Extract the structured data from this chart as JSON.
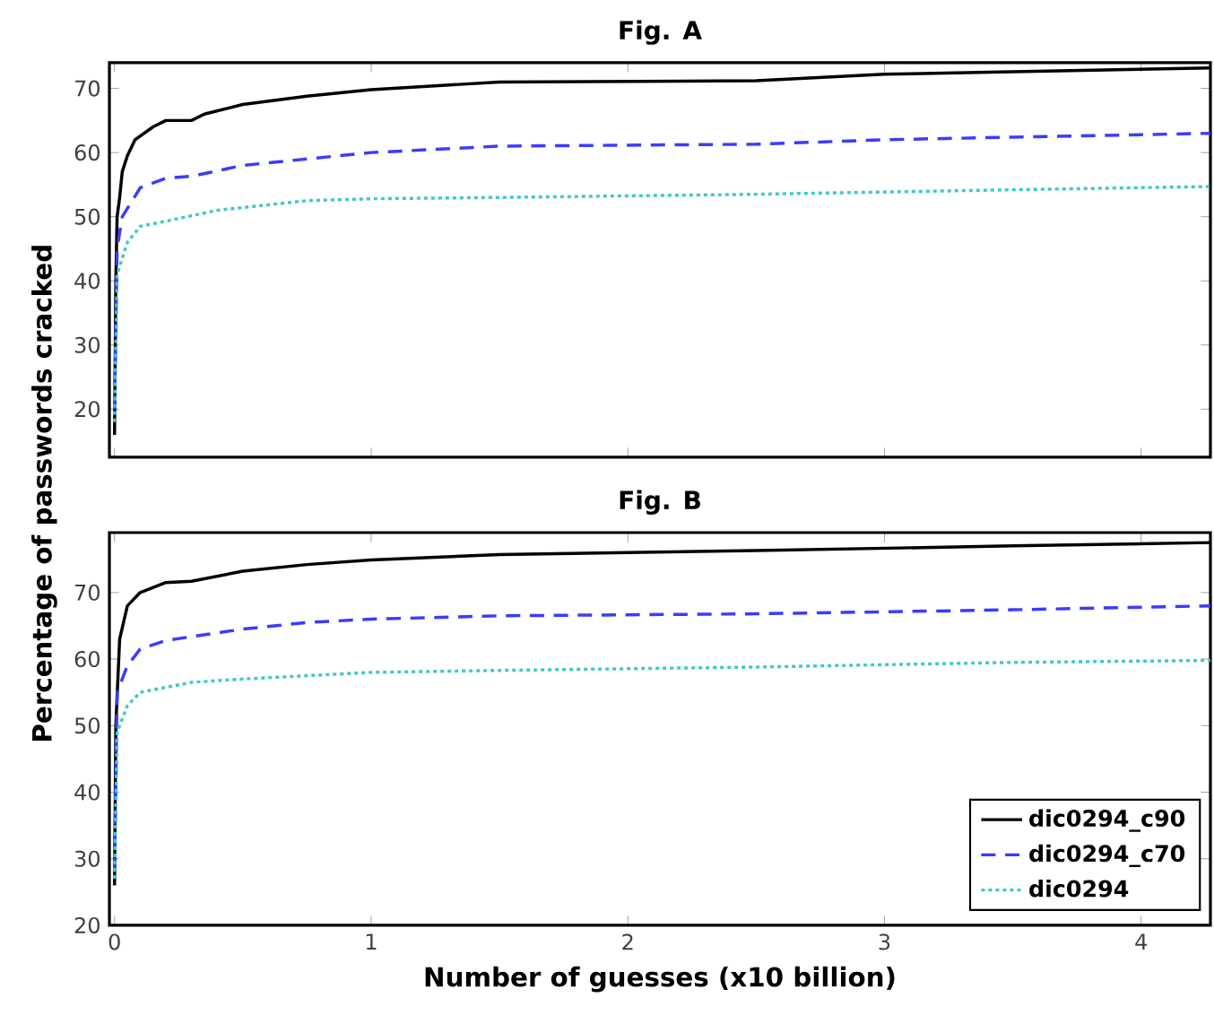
{
  "chart_data": [
    {
      "type": "line",
      "title": "Fig. A",
      "xlim": [
        -0.02,
        4.27
      ],
      "ylim": [
        12.5,
        74
      ],
      "xticks": [
        0,
        1,
        2,
        3,
        4
      ],
      "yticks": [
        20,
        30,
        40,
        50,
        60,
        70
      ],
      "tick_labels": "y",
      "series": [
        {
          "color": "#000000",
          "line_style": "solid",
          "x": [
            0,
            0.005,
            0.01,
            0.02,
            0.03,
            0.05,
            0.08,
            0.15,
            0.2,
            0.3,
            0.35,
            0.5,
            0.75,
            1.0,
            1.5,
            2.5,
            3.0,
            3.5,
            4.27
          ],
          "values": [
            16,
            40,
            50,
            53,
            57,
            59.5,
            62,
            64,
            65,
            65,
            66,
            67.5,
            68.8,
            69.8,
            71,
            71.2,
            72.2,
            72.6,
            73.2
          ]
        },
        {
          "color": "#3b3bff",
          "line_style": "dashed",
          "x": [
            0,
            0.01,
            0.03,
            0.1,
            0.2,
            0.3,
            0.5,
            0.75,
            1.0,
            1.5,
            2.5,
            3.0,
            3.5,
            4.27
          ],
          "values": [
            20,
            45,
            50,
            54.5,
            56,
            56.3,
            58,
            59,
            60,
            61,
            61.3,
            62,
            62.4,
            63
          ]
        },
        {
          "color": "#40c8c8",
          "line_style": "dotted",
          "x": [
            0,
            0.01,
            0.05,
            0.1,
            0.2,
            0.4,
            0.75,
            1.0,
            1.5,
            2.5,
            3.5,
            4.27
          ],
          "values": [
            18,
            41,
            46,
            48.5,
            49.3,
            51,
            52.5,
            52.8,
            53,
            53.5,
            54.2,
            54.7
          ]
        }
      ]
    },
    {
      "type": "line",
      "title": "Fig. B",
      "xlabel": "Number of guesses (x10 billion)",
      "ylabel": "Percentage of passwords cracked",
      "xlim": [
        -0.02,
        4.27
      ],
      "ylim": [
        20,
        79
      ],
      "xticks": [
        0,
        1,
        2,
        3,
        4
      ],
      "yticks": [
        20,
        30,
        40,
        50,
        60,
        70
      ],
      "legend": "bottom right",
      "series": [
        {
          "name": "dic0294_c90",
          "color": "#000000",
          "line_style": "solid",
          "x": [
            0,
            0.005,
            0.02,
            0.05,
            0.1,
            0.2,
            0.3,
            0.5,
            0.75,
            1.0,
            1.5,
            2.5,
            3.5,
            4.27
          ],
          "values": [
            26,
            50,
            63,
            68,
            70,
            71.5,
            71.7,
            73.2,
            74.2,
            74.9,
            75.7,
            76.3,
            77,
            77.5
          ]
        },
        {
          "name": "dic0294_c70",
          "color": "#3b3bff",
          "line_style": "dashed",
          "x": [
            0,
            0.01,
            0.05,
            0.1,
            0.2,
            0.5,
            0.75,
            1.0,
            1.5,
            2.5,
            3.5,
            4.27
          ],
          "values": [
            28,
            55,
            59,
            61.5,
            62.8,
            64.5,
            65.5,
            66,
            66.5,
            66.8,
            67.4,
            68
          ]
        },
        {
          "name": "dic0294",
          "color": "#40c8c8",
          "line_style": "dotted",
          "x": [
            0,
            0.01,
            0.05,
            0.1,
            0.3,
            0.5,
            1.0,
            1.5,
            2.5,
            3.5,
            4.27
          ],
          "values": [
            27,
            49,
            53,
            55,
            56.5,
            57,
            58,
            58.3,
            58.8,
            59.5,
            59.8
          ]
        }
      ]
    }
  ]
}
